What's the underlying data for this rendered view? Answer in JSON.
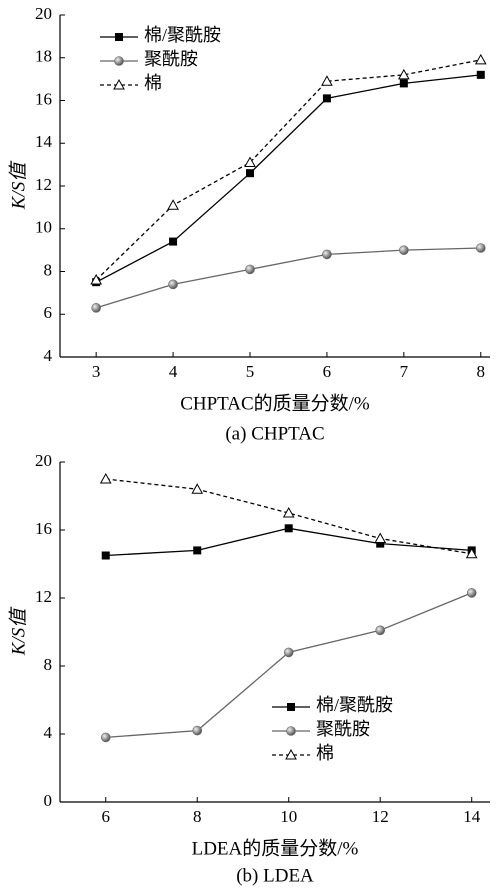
{
  "chart_data": [
    {
      "type": "line",
      "title": "(a) CHPTAC",
      "xlabel": "CHPTAC的质量分数/%",
      "ylabel": "K/S值",
      "x": [
        3,
        4,
        5,
        6,
        7,
        8
      ],
      "xlim": [
        2.53,
        8.12
      ],
      "xticks": [
        3,
        4,
        5,
        6,
        7,
        8
      ],
      "ylim": [
        4,
        20
      ],
      "yticks": [
        4,
        6,
        8,
        10,
        12,
        14,
        16,
        18,
        20
      ],
      "legend": "upper left",
      "series": [
        {
          "name": "棉/聚酰胺",
          "color": "#000000",
          "marker": "square",
          "style": "solid",
          "values": [
            7.5,
            9.4,
            12.6,
            16.1,
            16.8,
            17.2
          ]
        },
        {
          "name": "聚酰胺",
          "color": "#666666",
          "marker": "circle",
          "style": "solid",
          "values": [
            6.3,
            7.4,
            8.1,
            8.8,
            9.0,
            9.1
          ]
        },
        {
          "name": "棉",
          "color": "#000000",
          "marker": "triangle",
          "style": "dashed",
          "values": [
            7.6,
            11.1,
            13.1,
            16.9,
            17.2,
            17.9
          ]
        }
      ]
    },
    {
      "type": "line",
      "title": "(b) LDEA",
      "xlabel": "LDEA的质量分数/%",
      "ylabel": "K/S值",
      "x": [
        6,
        8,
        10,
        12,
        14
      ],
      "xlim": [
        5.0,
        14.4
      ],
      "xticks": [
        6,
        8,
        10,
        12,
        14
      ],
      "ylim": [
        0,
        20
      ],
      "yticks": [
        0,
        4,
        8,
        12,
        16,
        20
      ],
      "legend": "lower right",
      "series": [
        {
          "name": "棉/聚酰胺",
          "color": "#000000",
          "marker": "square",
          "style": "solid",
          "values": [
            14.5,
            14.8,
            16.1,
            15.2,
            14.8
          ]
        },
        {
          "name": "聚酰胺",
          "color": "#666666",
          "marker": "circle",
          "style": "solid",
          "values": [
            3.8,
            4.2,
            8.8,
            10.1,
            12.3
          ]
        },
        {
          "name": "棉",
          "color": "#000000",
          "marker": "triangle",
          "style": "dashed",
          "values": [
            19.0,
            18.4,
            17.0,
            15.5,
            14.6
          ]
        }
      ]
    }
  ]
}
